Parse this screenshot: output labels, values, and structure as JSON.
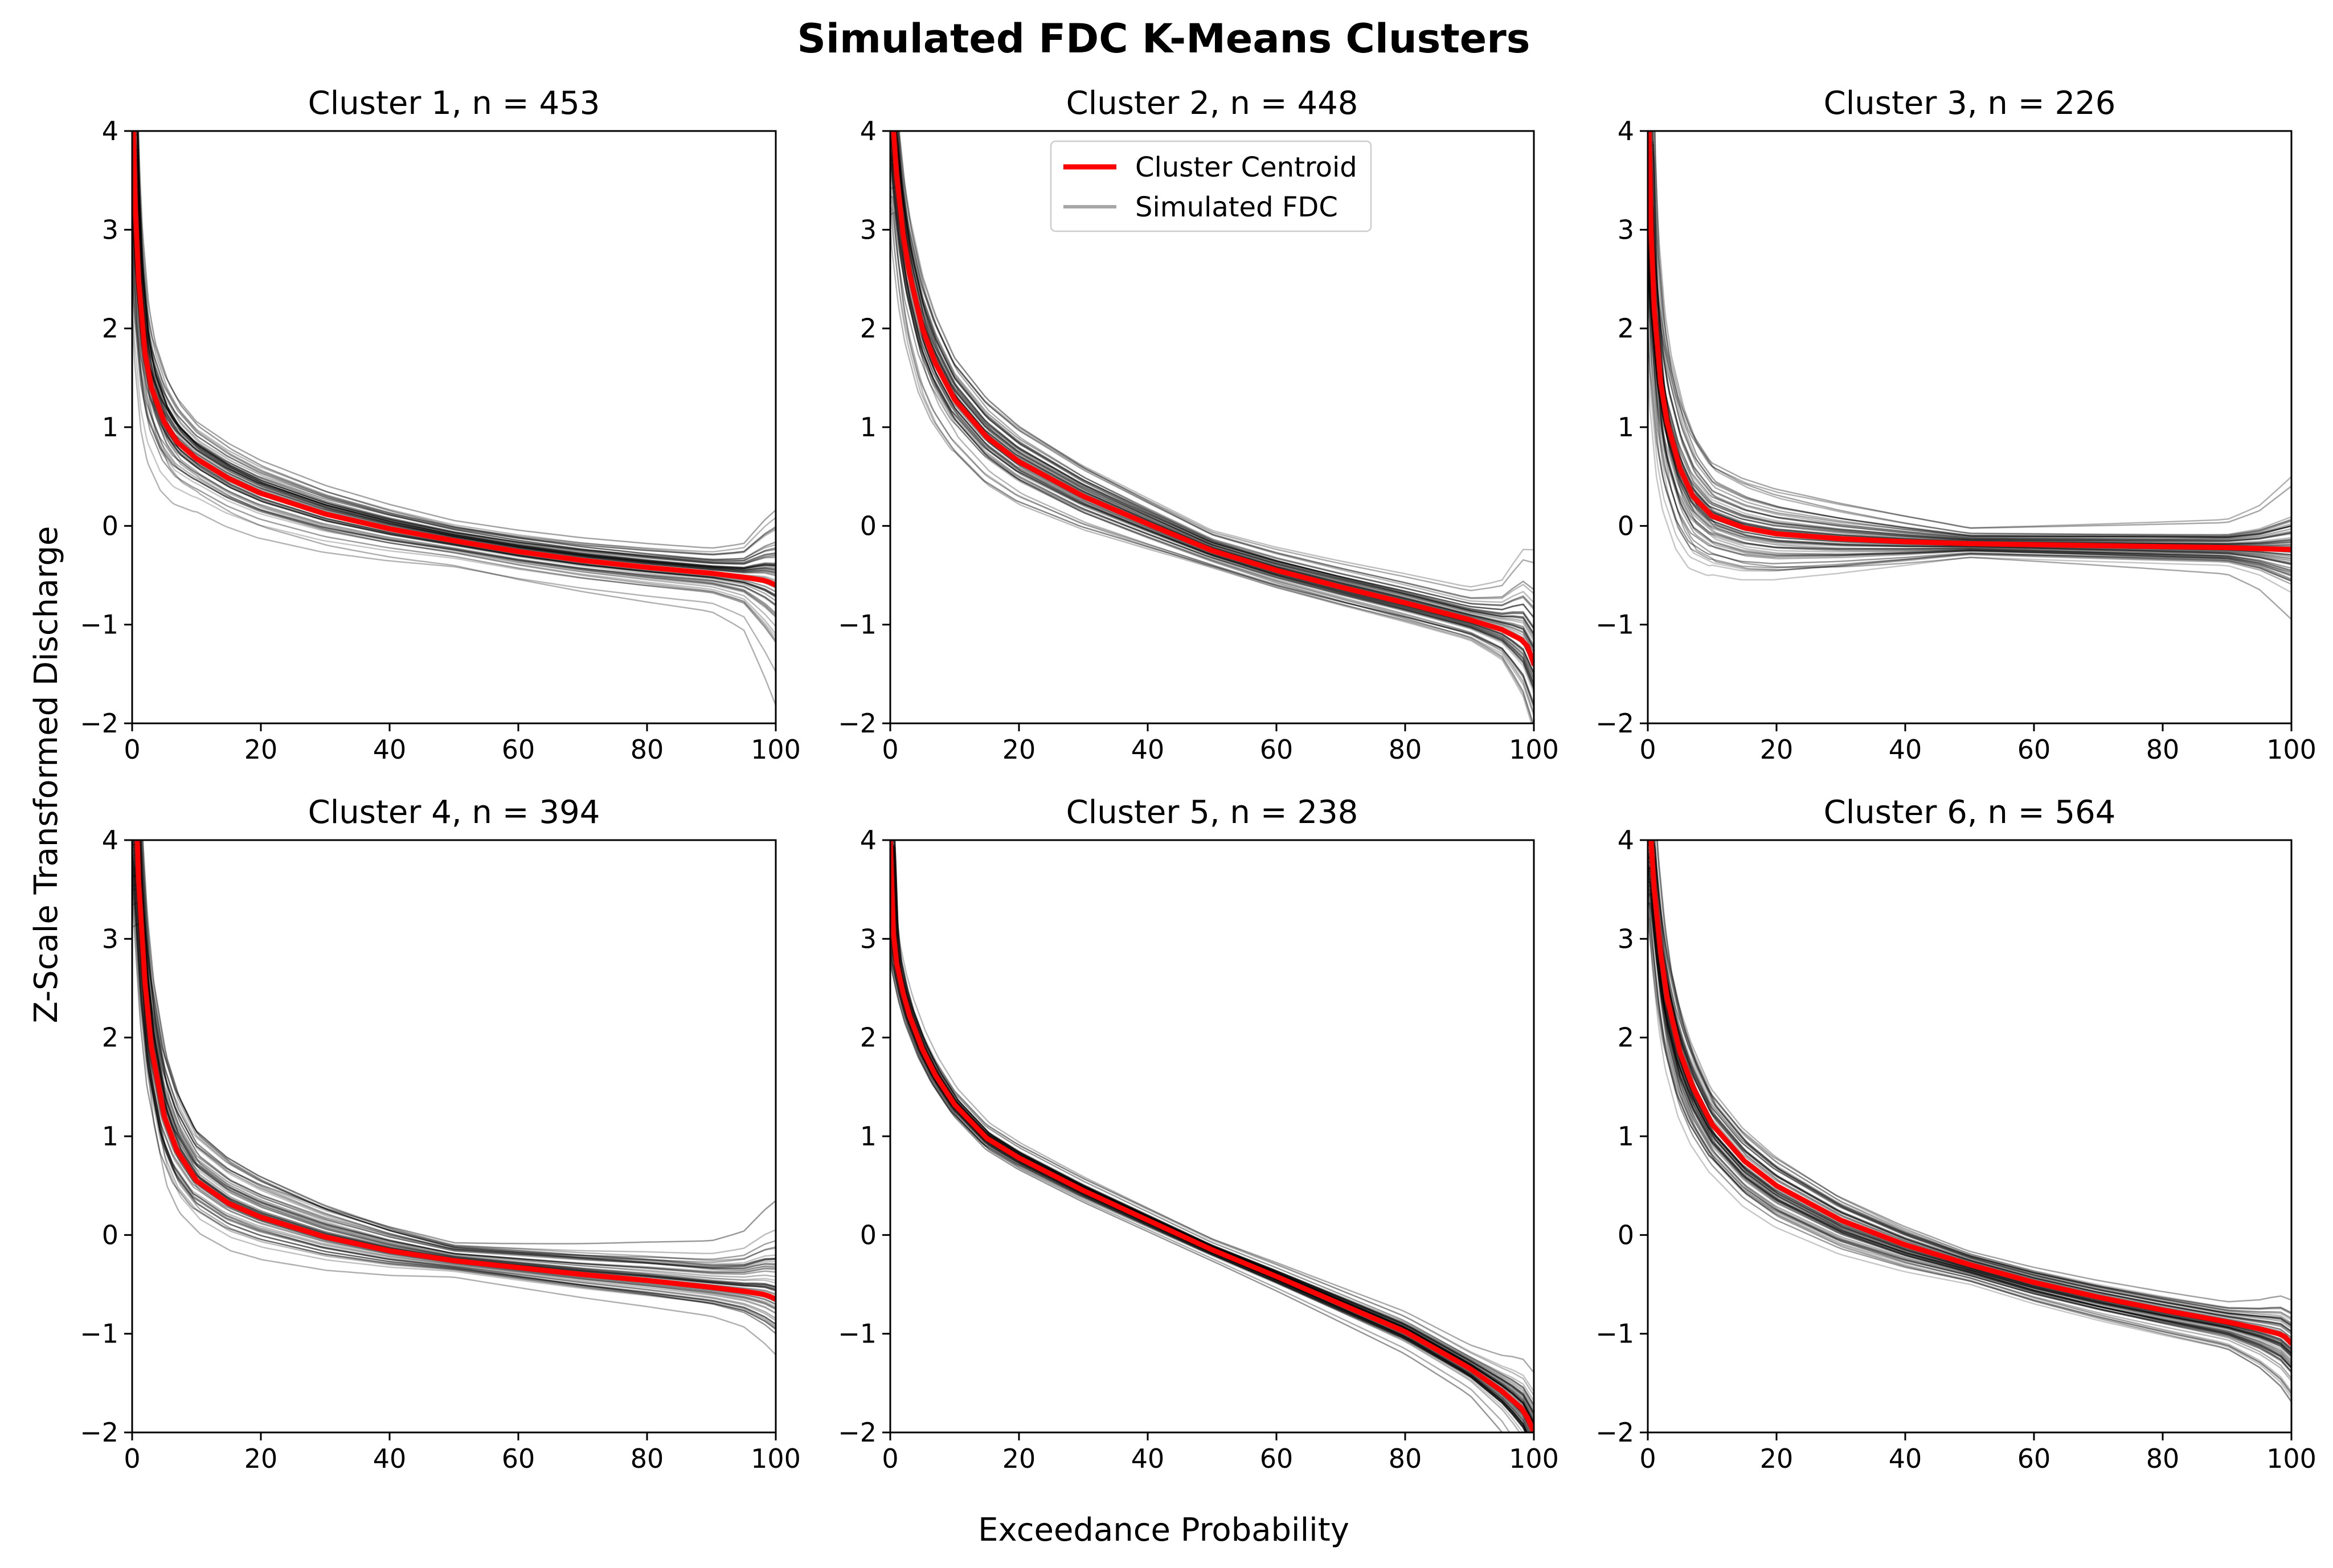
{
  "title": "Simulated FDC K-Means Clusters",
  "xlabel": "Exceedance Probability",
  "ylabel": "Z-Scale Transformed Discharge",
  "legend": [
    {
      "label": "Cluster Centroid",
      "color": "#ff0000"
    },
    {
      "label": "Simulated FDC",
      "color": "#a6a6a6"
    }
  ],
  "colors": {
    "centroid": "#ff0000",
    "simulated": "#000000",
    "axes": "#000000"
  },
  "chart_data": [
    {
      "type": "line",
      "title": "Cluster 1, n = 453",
      "xlim": [
        0,
        100
      ],
      "ylim": [
        -2,
        4
      ],
      "xticks": [
        "0",
        "20",
        "40",
        "60",
        "80",
        "100"
      ],
      "yticks": [
        "4",
        "3",
        "2",
        "1",
        "0",
        "−1",
        "−2"
      ],
      "centroid": {
        "x": [
          0.2,
          0.5,
          1,
          2,
          3,
          5,
          7,
          10,
          15,
          20,
          30,
          40,
          50,
          60,
          70,
          80,
          90,
          95,
          98,
          99,
          100
        ],
        "y": [
          4.0,
          3.2,
          2.5,
          1.75,
          1.4,
          1.05,
          0.85,
          0.68,
          0.48,
          0.33,
          0.12,
          -0.03,
          -0.15,
          -0.26,
          -0.35,
          -0.42,
          -0.48,
          -0.52,
          -0.55,
          -0.57,
          -0.6
        ]
      },
      "spread": {
        "x": [
          0,
          10,
          50,
          90,
          95,
          100
        ],
        "y": [
          0.35,
          0.22,
          0.12,
          0.15,
          0.2,
          0.45
        ]
      }
    },
    {
      "type": "line",
      "title": "Cluster 2, n = 448",
      "xlim": [
        0,
        100
      ],
      "ylim": [
        -2,
        4
      ],
      "xticks": [
        "0",
        "20",
        "40",
        "60",
        "80",
        "100"
      ],
      "yticks": [
        "4",
        "3",
        "2",
        "1",
        "0",
        "−1",
        "−2"
      ],
      "centroid": {
        "x": [
          0.5,
          1,
          2,
          3,
          5,
          7,
          10,
          15,
          20,
          30,
          40,
          50,
          60,
          70,
          80,
          90,
          95,
          98,
          99,
          100
        ],
        "y": [
          4.0,
          3.55,
          2.95,
          2.55,
          2.0,
          1.65,
          1.28,
          0.9,
          0.65,
          0.3,
          0.02,
          -0.25,
          -0.45,
          -0.62,
          -0.78,
          -0.95,
          -1.05,
          -1.15,
          -1.22,
          -1.4
        ]
      },
      "spread": {
        "x": [
          0,
          10,
          50,
          90,
          95,
          100
        ],
        "y": [
          0.45,
          0.3,
          0.12,
          0.15,
          0.22,
          0.5
        ]
      }
    },
    {
      "type": "line",
      "title": "Cluster 3, n = 226",
      "xlim": [
        0,
        100
      ],
      "ylim": [
        -2,
        4
      ],
      "xticks": [
        "0",
        "20",
        "40",
        "60",
        "80",
        "100"
      ],
      "yticks": [
        "4",
        "3",
        "2",
        "1",
        "0",
        "−1",
        "−2"
      ],
      "centroid": {
        "x": [
          0.2,
          0.5,
          1,
          2,
          3,
          5,
          7,
          10,
          15,
          20,
          30,
          40,
          50,
          60,
          70,
          80,
          90,
          100
        ],
        "y": [
          4.0,
          3.0,
          2.2,
          1.45,
          1.05,
          0.58,
          0.3,
          0.1,
          -0.02,
          -0.08,
          -0.13,
          -0.16,
          -0.18,
          -0.19,
          -0.2,
          -0.21,
          -0.22,
          -0.24
        ]
      },
      "spread": {
        "x": [
          0,
          10,
          50,
          90,
          95,
          100
        ],
        "y": [
          0.5,
          0.3,
          0.08,
          0.12,
          0.18,
          0.3
        ]
      }
    },
    {
      "type": "line",
      "title": "Cluster 4, n = 394",
      "xlim": [
        0,
        100
      ],
      "ylim": [
        -2,
        4
      ],
      "xticks": [
        "0",
        "20",
        "40",
        "60",
        "80",
        "100"
      ],
      "yticks": [
        "4",
        "3",
        "2",
        "1",
        "0",
        "−1",
        "−2"
      ],
      "centroid": {
        "x": [
          0.8,
          1,
          2,
          3,
          5,
          7,
          10,
          15,
          20,
          30,
          40,
          50,
          60,
          70,
          80,
          90,
          95,
          98,
          99,
          100
        ],
        "y": [
          4.0,
          3.6,
          2.55,
          1.9,
          1.2,
          0.85,
          0.55,
          0.32,
          0.18,
          -0.02,
          -0.16,
          -0.26,
          -0.33,
          -0.4,
          -0.46,
          -0.53,
          -0.57,
          -0.6,
          -0.62,
          -0.65
        ]
      },
      "spread": {
        "x": [
          0,
          10,
          50,
          90,
          95,
          100
        ],
        "y": [
          0.45,
          0.28,
          0.1,
          0.2,
          0.25,
          0.4
        ]
      }
    },
    {
      "type": "line",
      "title": "Cluster 5, n = 238",
      "xlim": [
        0,
        100
      ],
      "ylim": [
        -2,
        4
      ],
      "xticks": [
        "0",
        "20",
        "40",
        "60",
        "80",
        "100"
      ],
      "yticks": [
        "4",
        "3",
        "2",
        "1",
        "0",
        "−1",
        "−2"
      ],
      "centroid": {
        "x": [
          0,
          0.5,
          1,
          2,
          3,
          5,
          7,
          10,
          15,
          20,
          30,
          40,
          50,
          60,
          70,
          80,
          90,
          95,
          98,
          99,
          100
        ],
        "y": [
          4.0,
          3.05,
          2.75,
          2.45,
          2.22,
          1.88,
          1.62,
          1.32,
          0.98,
          0.78,
          0.45,
          0.15,
          -0.15,
          -0.42,
          -0.7,
          -0.98,
          -1.35,
          -1.58,
          -1.75,
          -1.85,
          -2.0
        ]
      },
      "spread": {
        "x": [
          0,
          10,
          50,
          90,
          95,
          100
        ],
        "y": [
          0.1,
          0.08,
          0.06,
          0.12,
          0.18,
          0.3
        ]
      }
    },
    {
      "type": "line",
      "title": "Cluster 6, n = 564",
      "xlim": [
        0,
        100
      ],
      "ylim": [
        -2,
        4
      ],
      "xticks": [
        "0",
        "20",
        "40",
        "60",
        "80",
        "100"
      ],
      "yticks": [
        "4",
        "3",
        "2",
        "1",
        "0",
        "−1",
        "−2"
      ],
      "centroid": {
        "x": [
          0.5,
          1,
          2,
          3,
          5,
          7,
          10,
          15,
          20,
          30,
          40,
          50,
          60,
          70,
          80,
          90,
          95,
          98,
          99,
          100
        ],
        "y": [
          4.0,
          3.5,
          2.85,
          2.4,
          1.85,
          1.5,
          1.12,
          0.75,
          0.5,
          0.15,
          -0.1,
          -0.3,
          -0.48,
          -0.63,
          -0.76,
          -0.88,
          -0.95,
          -1.0,
          -1.03,
          -1.1
        ]
      },
      "spread": {
        "x": [
          0,
          10,
          50,
          90,
          95,
          100
        ],
        "y": [
          0.4,
          0.25,
          0.1,
          0.14,
          0.2,
          0.3
        ]
      }
    }
  ]
}
